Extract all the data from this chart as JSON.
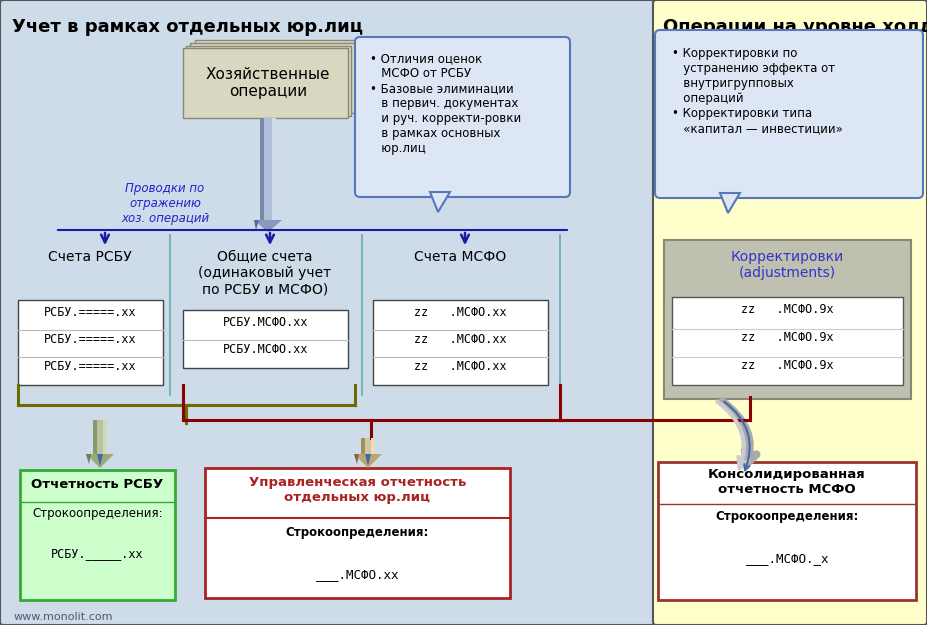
{
  "bg_left_color": "#cddce8",
  "bg_right_color": "#ffffcc",
  "title_left": "Учет в рамках отдельных юр.лиц",
  "title_right": "Операции на уровне холдинга",
  "hoz_op_text": "Хозяйственные\nоперации",
  "hoz_op_bg": "#d8d8c0",
  "provodki_text": "Проводки по\nотражению\nхоз. операций",
  "bubble_center_text": "• Отличия оценок\n   МСФО от РСБУ\n• Базовые элиминации\n   в первич. документах\n   и руч. корректи-ровки\n   в рамках основных\n   юр.лиц",
  "bubble_right_text": "• Корректировки по\n   устранению эффекта от\n   внутригрупповых\n   операций\n• Корректировки типа\n   «капитал — инвестиции»",
  "col1_title": "Счета РСБУ",
  "col2_title": "Общие счета\n(одинаковый учет\nпо РСБУ и МСФО)",
  "col3_title": "Счета МСФО",
  "col4_title": "Корректировки\n(adjustments)",
  "rsbu_rows": [
    "РСБУ.=====.хх",
    "РСБУ.=====.хх",
    "РСБУ.=====.хх"
  ],
  "common_rows": [
    "РСБУ.МСФО.хх",
    "РСБУ.МСФО.хх"
  ],
  "msfo_rows": [
    "zz   .МСФО.хх",
    "zz   .МСФО.хх",
    "zz   .МСФО.хх"
  ],
  "adj_rows": [
    "zz   .МСФО.9х",
    "zz   .МСФО.9х",
    "zz   .МСФО.9х"
  ],
  "box1_title": "Отчетность РСБУ",
  "box1_sub": "Строкоопределения:",
  "box1_val": "РСБУ._____.хх",
  "box1_bg": "#ccffcc",
  "box1_border": "#33aa33",
  "box2_title": "Управленческая отчетность\nотдельных юр.лиц",
  "box2_sub": "Строкоопределения:",
  "box2_val": "___.МСФО.хх",
  "box2_bg": "#ffffff",
  "box2_border": "#aa2222",
  "box3_title": "Консолидированная\nотчетность МСФО",
  "box3_sub": "Строкоопределения:",
  "box3_val": "___.МСФО._х",
  "box3_bg": "#ffffff",
  "box3_border": "#993333",
  "website": "www.monolit.com",
  "arrow_color": "#1a1aaa",
  "brace_olive": "#6b6b00",
  "brace_red": "#8b0000",
  "col_sep_color": "#44a0aa",
  "adj_gray": "#c0c0b0",
  "adj_title_color": "#3333cc"
}
